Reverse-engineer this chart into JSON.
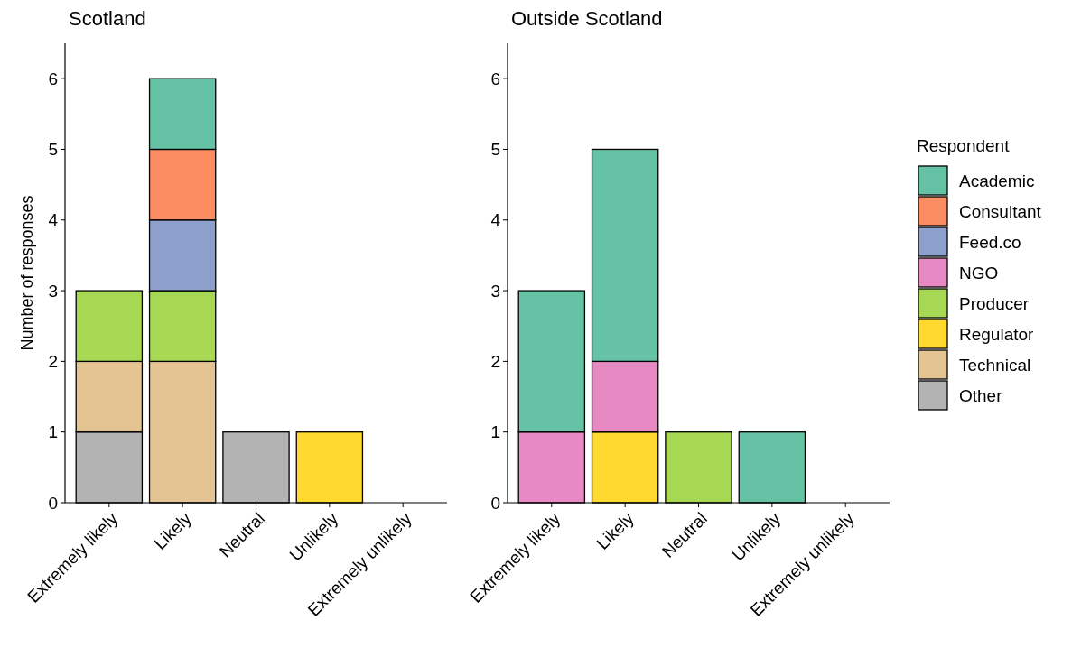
{
  "chart_data": [
    {
      "type": "bar",
      "title": "Scotland",
      "ylabel": "Number of responses",
      "stacked": true,
      "categories": [
        "Extremely likely",
        "Likely",
        "Neutral",
        "Unlikely",
        "Extremely unlikely"
      ],
      "ylim": [
        0,
        6.5
      ],
      "yticks": [
        0,
        1,
        2,
        3,
        4,
        5,
        6
      ],
      "grid": false,
      "legend": false,
      "series": [
        {
          "color": "#b3b3b3",
          "values": [
            1,
            null,
            1,
            null,
            null
          ]
        },
        {
          "color": "#e5c494",
          "values": [
            1,
            2,
            null,
            null,
            null
          ]
        },
        {
          "color": "#ffd92f",
          "values": [
            null,
            null,
            null,
            1,
            null
          ]
        },
        {
          "color": "#a6d854",
          "values": [
            1,
            1,
            null,
            null,
            null
          ]
        },
        {
          "color": "#8da0cb",
          "values": [
            null,
            1,
            null,
            null,
            null
          ]
        },
        {
          "color": "#fc8d62",
          "values": [
            null,
            1,
            null,
            null,
            null
          ]
        },
        {
          "color": "#66c2a5",
          "values": [
            null,
            1,
            null,
            null,
            null
          ]
        }
      ]
    },
    {
      "type": "bar",
      "title": "Outside Scotland",
      "legend_title": "Respondent",
      "stacked": true,
      "categories": [
        "Extremely likely",
        "Likely",
        "Neutral",
        "Unlikely",
        "Extremely unlikely"
      ],
      "ylim": [
        0,
        6.5
      ],
      "yticks": [
        0,
        1,
        2,
        3,
        4,
        5,
        6
      ],
      "grid": false,
      "legend": "right",
      "series": [
        {
          "name": "Other",
          "color": "#b3b3b3",
          "values": [
            null,
            null,
            null,
            null,
            null
          ]
        },
        {
          "name": "Technical",
          "color": "#e5c494",
          "values": [
            null,
            null,
            null,
            null,
            null
          ]
        },
        {
          "name": "Regulator",
          "color": "#ffd92f",
          "values": [
            null,
            1,
            null,
            null,
            null
          ]
        },
        {
          "name": "Producer",
          "color": "#a6d854",
          "values": [
            null,
            null,
            1,
            null,
            null
          ]
        },
        {
          "name": "NGO",
          "color": "#e78ac3",
          "values": [
            1,
            1,
            null,
            null,
            null
          ]
        },
        {
          "name": "Feed.co",
          "color": "#8da0cb",
          "values": [
            null,
            null,
            null,
            null,
            null
          ]
        },
        {
          "name": "Consultant",
          "color": "#fc8d62",
          "values": [
            null,
            null,
            null,
            null,
            null
          ]
        },
        {
          "name": "Academic",
          "color": "#66c2a5",
          "values": [
            2,
            3,
            null,
            1,
            null
          ]
        }
      ]
    }
  ]
}
